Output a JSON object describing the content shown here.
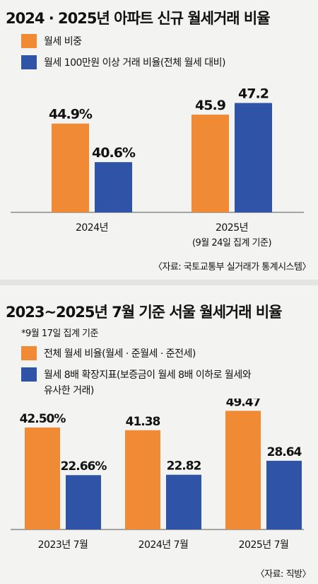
{
  "colors": {
    "orange": "#f08a34",
    "blue": "#2f54a7",
    "axis": "#555555"
  },
  "chart1": {
    "title": "2024 · 2025년 아파트 신규 월세거래 비율",
    "legend": [
      "월세 비중",
      "월세 100만원 이상 거래 비율(전체 월세 대비)"
    ],
    "source": "〈자료: 국토교통부 실거래가 통계시스템〉"
  },
  "chart2": {
    "title": "2023~2025년 7월 기준 서울 월세거래 비율",
    "note": "*9월 17일 집계 기준",
    "legend": [
      "전체 월세 비율(월세 · 준월세 · 준전세)",
      "월세 8배 확장지표(보증금이 월세 8배 이하로 월세와",
      "유사한 거래)"
    ],
    "source": "〈자료: 직방〉"
  },
  "chart_data": [
    {
      "type": "bar",
      "title": "2024 · 2025년 아파트 신규 월세거래 비율",
      "categories": [
        "2024년",
        "2025년"
      ],
      "category_sublabels": [
        "",
        "(9월 24일 집계 기준)"
      ],
      "series": [
        {
          "name": "월세 비중",
          "values": [
            44.9,
            45.9
          ],
          "labels": [
            "44.9%",
            "45.9"
          ]
        },
        {
          "name": "월세 100만원 이상 거래 비율(전체 월세 대비)",
          "values": [
            40.6,
            47.2
          ],
          "labels": [
            "40.6%",
            "47.2"
          ]
        }
      ],
      "ylim": [
        35,
        50
      ],
      "grid": false,
      "legend_position": "top-left"
    },
    {
      "type": "bar",
      "title": "2023~2025년 7월 기준 서울 월세거래 비율",
      "categories": [
        "2023년 7월",
        "2024년 7월",
        "2025년 7월"
      ],
      "series": [
        {
          "name": "전체 월세 비율(월세 · 준월세 · 준전세)",
          "values": [
            42.5,
            41.38,
            49.47
          ],
          "labels": [
            "42.50%",
            "41.38",
            "49.47"
          ]
        },
        {
          "name": "월세 8배 확장지표(보증금이 월세 8배 이하로 월세와 유사한 거래)",
          "values": [
            22.66,
            22.82,
            28.64
          ],
          "labels": [
            "22.66%",
            "22.82",
            "28.64"
          ]
        }
      ],
      "ylim": [
        0,
        54
      ],
      "grid": false,
      "legend_position": "top-left"
    }
  ]
}
